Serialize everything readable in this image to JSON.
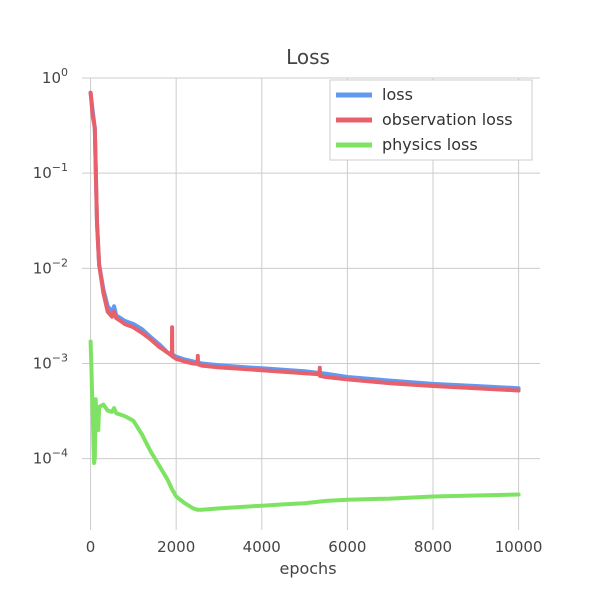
{
  "chart_data": {
    "type": "line",
    "title": "Loss",
    "xlabel": "epochs",
    "ylabel": "",
    "yscale": "log",
    "xlim": [
      -200,
      10500
    ],
    "ylim_log10": [
      -4.75,
      0
    ],
    "xticks": [
      0,
      2000,
      4000,
      6000,
      8000,
      10000
    ],
    "xtick_labels": [
      "0",
      "2000",
      "4000",
      "6000",
      "8000",
      "10000"
    ],
    "yticks": [
      1,
      0.1,
      0.01,
      0.001,
      0.0001
    ],
    "ytick_labels": [
      {
        "base": "10",
        "exp": "0"
      },
      {
        "base": "10",
        "exp": "−1"
      },
      {
        "base": "10",
        "exp": "−2"
      },
      {
        "base": "10",
        "exp": "−3"
      },
      {
        "base": "10",
        "exp": "−4"
      }
    ],
    "grid": true,
    "legend_position": "top-right",
    "series": [
      {
        "name": "loss",
        "color": "#6199f0",
        "x": [
          0,
          50,
          100,
          150,
          200,
          300,
          400,
          500,
          550,
          600,
          700,
          800,
          1000,
          1200,
          1400,
          1600,
          1800,
          1900,
          2000,
          2200,
          2400,
          2500,
          2600,
          3000,
          3500,
          4000,
          4500,
          5000,
          5300,
          5500,
          6000,
          7000,
          8000,
          9000,
          10000
        ],
        "y": [
          0.7,
          0.45,
          0.3,
          0.03,
          0.011,
          0.006,
          0.004,
          0.0035,
          0.004,
          0.0032,
          0.003,
          0.0028,
          0.0026,
          0.0023,
          0.0019,
          0.0016,
          0.0013,
          0.00125,
          0.00118,
          0.0011,
          0.00105,
          0.00103,
          0.001,
          0.00096,
          0.00092,
          0.00089,
          0.00086,
          0.00083,
          0.0008,
          0.00078,
          0.00072,
          0.00066,
          0.00061,
          0.00058,
          0.00055
        ]
      },
      {
        "name": "observation loss",
        "color": "#e8606a",
        "x": [
          0,
          50,
          100,
          150,
          200,
          300,
          400,
          500,
          550,
          600,
          700,
          800,
          1000,
          1200,
          1400,
          1600,
          1800,
          1900,
          1905,
          1910,
          1920,
          2000,
          2200,
          2400,
          2500,
          2505,
          2510,
          2600,
          3000,
          3500,
          4000,
          4500,
          5000,
          5350,
          5355,
          5360,
          5500,
          6000,
          7000,
          8000,
          9000,
          10000
        ],
        "y": [
          0.7,
          0.4,
          0.3,
          0.03,
          0.011,
          0.0055,
          0.0035,
          0.0031,
          0.0035,
          0.003,
          0.0028,
          0.0026,
          0.0024,
          0.0021,
          0.0018,
          0.0015,
          0.0013,
          0.0012,
          0.0024,
          0.0012,
          0.00118,
          0.00112,
          0.00105,
          0.001,
          0.00099,
          0.0012,
          0.00098,
          0.00095,
          0.00091,
          0.00088,
          0.00085,
          0.00082,
          0.00079,
          0.00077,
          0.0009,
          0.00074,
          0.00072,
          0.00068,
          0.00062,
          0.00058,
          0.00055,
          0.00052
        ]
      },
      {
        "name": "physics loss",
        "color": "#7ee363",
        "x": [
          0,
          20,
          40,
          60,
          80,
          100,
          120,
          140,
          160,
          180,
          200,
          300,
          400,
          500,
          550,
          600,
          800,
          1000,
          1200,
          1400,
          1600,
          1800,
          1900,
          2000,
          2200,
          2400,
          2500,
          2600,
          3000,
          3500,
          4000,
          4500,
          5000,
          5500,
          6000,
          7000,
          8000,
          9000,
          10000
        ],
        "y": [
          0.0017,
          0.0009,
          0.0004,
          0.00022,
          9e-05,
          0.0001,
          0.00042,
          0.00025,
          0.00035,
          0.0002,
          0.00035,
          0.00037,
          0.00032,
          0.00031,
          0.00034,
          0.0003,
          0.00028,
          0.00025,
          0.00018,
          0.00012,
          8.5e-05,
          6e-05,
          4.8e-05,
          4e-05,
          3.4e-05,
          3e-05,
          2.9e-05,
          2.9e-05,
          3e-05,
          3.1e-05,
          3.2e-05,
          3.3e-05,
          3.4e-05,
          3.6e-05,
          3.7e-05,
          3.8e-05,
          4e-05,
          4.1e-05,
          4.2e-05
        ]
      }
    ]
  }
}
